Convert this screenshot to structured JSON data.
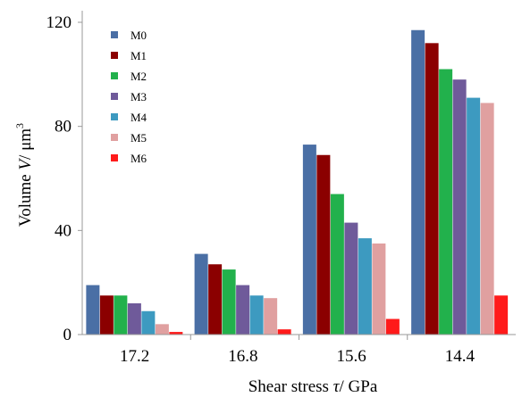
{
  "chart_data": {
    "type": "bar",
    "title": "",
    "xlabel": "Shear stress τ/ GPa",
    "ylabel": "Volume V/ μm³",
    "xlabel_parts": [
      "Shear stress ",
      "τ",
      "/ GPa"
    ],
    "ylabel_parts": [
      "Volume ",
      "V",
      "/ μm",
      "3"
    ],
    "categories": [
      "17.2",
      "16.8",
      "15.6",
      "14.4"
    ],
    "ylim": [
      0,
      120
    ],
    "yticks": [
      0,
      40,
      80,
      120
    ],
    "legend_position": "top-left",
    "grid": false,
    "series": [
      {
        "name": "M0",
        "color": "#4a6fa5",
        "values": [
          19,
          31,
          73,
          117
        ]
      },
      {
        "name": "M1",
        "color": "#8b0000",
        "values": [
          15,
          27,
          69,
          112
        ]
      },
      {
        "name": "M2",
        "color": "#22b14c",
        "values": [
          15,
          25,
          54,
          102
        ]
      },
      {
        "name": "M3",
        "color": "#6f5a9a",
        "values": [
          12,
          19,
          43,
          98
        ]
      },
      {
        "name": "M4",
        "color": "#3d9ac0",
        "values": [
          9,
          15,
          37,
          91
        ]
      },
      {
        "name": "M5",
        "color": "#e0a0a0",
        "values": [
          4,
          14,
          35,
          89
        ]
      },
      {
        "name": "M6",
        "color": "#ff1a1a",
        "values": [
          1,
          2,
          6,
          15
        ]
      }
    ]
  }
}
